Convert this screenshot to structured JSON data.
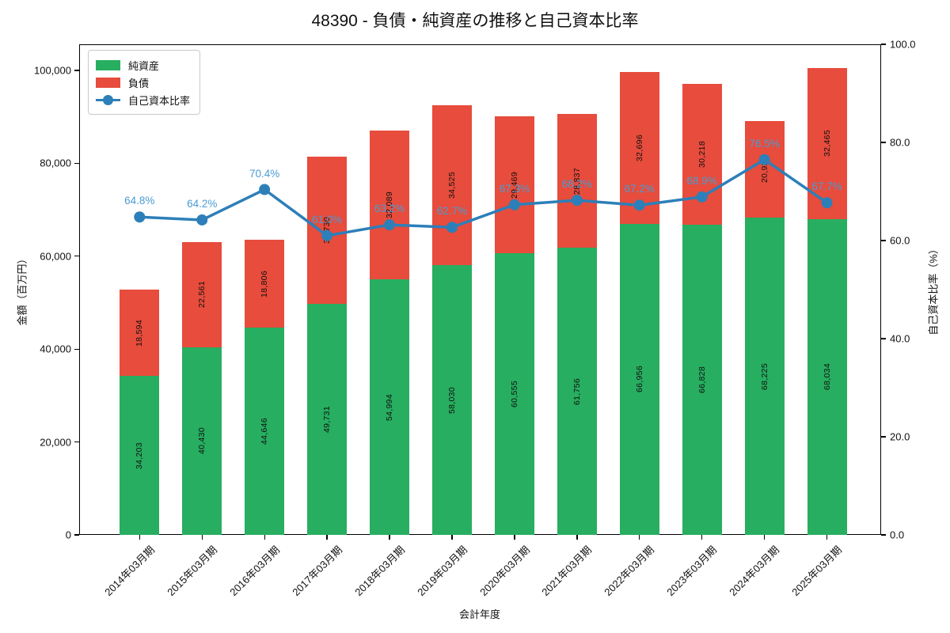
{
  "title": "48390 - 負債・純資産の推移と自己資本比率",
  "legend": {
    "net_assets": "純資産",
    "liabilities": "負債",
    "equity_ratio": "自己資本比率"
  },
  "axes": {
    "x_label": "会計年度",
    "y_left_label": "金額（百万円）",
    "y_right_label": "自己資本比率（%）",
    "y_left_ticks": [
      {
        "value": 0,
        "label": "0"
      },
      {
        "value": 20000,
        "label": "20,000"
      },
      {
        "value": 40000,
        "label": "40,000"
      },
      {
        "value": 60000,
        "label": "60,000"
      },
      {
        "value": 80000,
        "label": "80,000"
      },
      {
        "value": 100000,
        "label": "100,000"
      }
    ],
    "y_right_ticks": [
      {
        "value": 0,
        "label": "0.0"
      },
      {
        "value": 20,
        "label": "20.0"
      },
      {
        "value": 40,
        "label": "40.0"
      },
      {
        "value": 60,
        "label": "60.0"
      },
      {
        "value": 80,
        "label": "80.0"
      },
      {
        "value": 100,
        "label": "100.0"
      }
    ]
  },
  "colors": {
    "net_assets": "#27ae60",
    "liabilities": "#e74c3c",
    "ratio_line": "#2d7fb9",
    "ratio_label": "#4a9bd3",
    "grid": "#c9c9c9"
  },
  "chart_data": {
    "type": "bar",
    "subtype": "stacked-bars-with-line",
    "title": "48390 - 負債・純資産の推移と自己資本比率",
    "xlabel": "会計年度",
    "ylabel_left": "金額（百万円）",
    "ylabel_right": "自己資本比率（%）",
    "ylim_left": [
      0,
      105600
    ],
    "ylim_right": [
      0,
      100
    ],
    "grid": true,
    "legend_position": "upper-left",
    "categories": [
      "2014年03月期",
      "2015年03月期",
      "2016年03月期",
      "2017年03月期",
      "2018年03月期",
      "2019年03月期",
      "2020年03月期",
      "2021年03月期",
      "2022年03月期",
      "2023年03月期",
      "2024年03月期",
      "2025年03月期"
    ],
    "series": [
      {
        "name": "純資産",
        "type": "bar",
        "stack": true,
        "color": "#27ae60",
        "values": [
          34203,
          40430,
          44646,
          49731,
          54994,
          58030,
          60555,
          61756,
          66956,
          66828,
          68225,
          68034
        ]
      },
      {
        "name": "負債",
        "type": "bar",
        "stack": true,
        "color": "#e74c3c",
        "values": [
          18594,
          22561,
          18806,
          31730,
          32089,
          34525,
          29469,
          28837,
          32696,
          30218,
          20921,
          32465
        ]
      },
      {
        "name": "自己資本比率",
        "type": "line",
        "axis": "right",
        "color": "#2d7fb9",
        "values": [
          64.8,
          64.2,
          70.4,
          61.0,
          63.2,
          62.7,
          67.3,
          68.2,
          67.2,
          68.9,
          76.5,
          67.7
        ]
      }
    ]
  }
}
